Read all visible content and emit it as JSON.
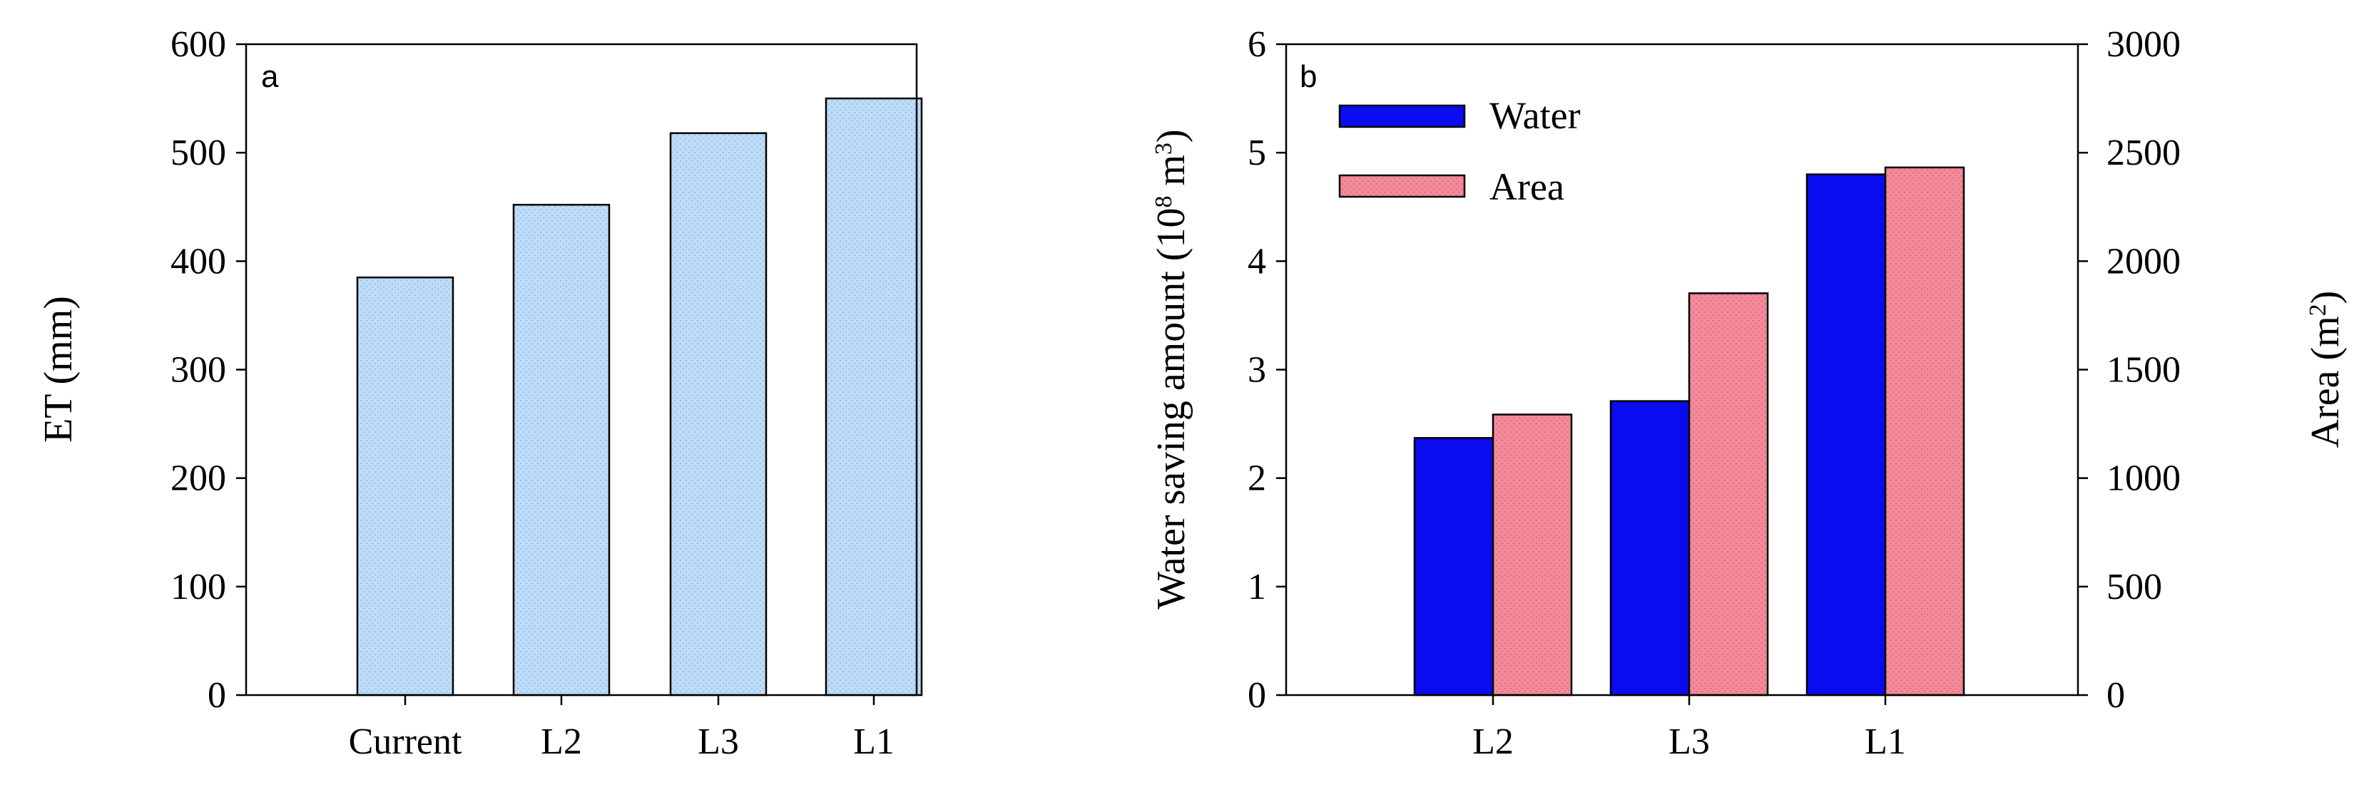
{
  "colors": {
    "et": "#bcdcf8",
    "water": "#0b0bf0",
    "area": "#f4899a",
    "dots": "#5a6d86"
  },
  "chart_data": [
    {
      "type": "bar",
      "panel_label": "a",
      "categories": [
        "Current",
        "L2",
        "L3",
        "L1"
      ],
      "values": [
        385,
        452,
        518,
        550
      ],
      "ylabel": "ET (mm)",
      "ylim": [
        0,
        600
      ],
      "yticks": [
        "0",
        "100",
        "200",
        "300",
        "400",
        "500",
        "600"
      ]
    },
    {
      "type": "bar",
      "panel_label": "b",
      "categories": [
        "L2",
        "L3",
        "L1"
      ],
      "series": [
        {
          "name": "Water",
          "values": [
            2.37,
            2.71,
            4.8
          ],
          "axis": "left"
        },
        {
          "name": "Area",
          "values": [
            1293,
            1852,
            2432
          ],
          "axis": "right"
        }
      ],
      "ylabel_left": "Water saving amount (10",
      "ylabel_left_exp": "8",
      "ylabel_left_unit": " m",
      "ylabel_left_unit_exp": "3",
      "ylabel_left_close": ")",
      "ylim_left": [
        0,
        6
      ],
      "yticks_left": [
        "0",
        "1",
        "2",
        "3",
        "4",
        "5",
        "6"
      ],
      "ylabel_right": "Area (m",
      "ylabel_right_exp": "2",
      "ylabel_right_close": ")",
      "ylim_right": [
        0,
        3000
      ],
      "yticks_right": [
        "0",
        "500",
        "1000",
        "1500",
        "2000",
        "2500",
        "3000"
      ]
    }
  ]
}
